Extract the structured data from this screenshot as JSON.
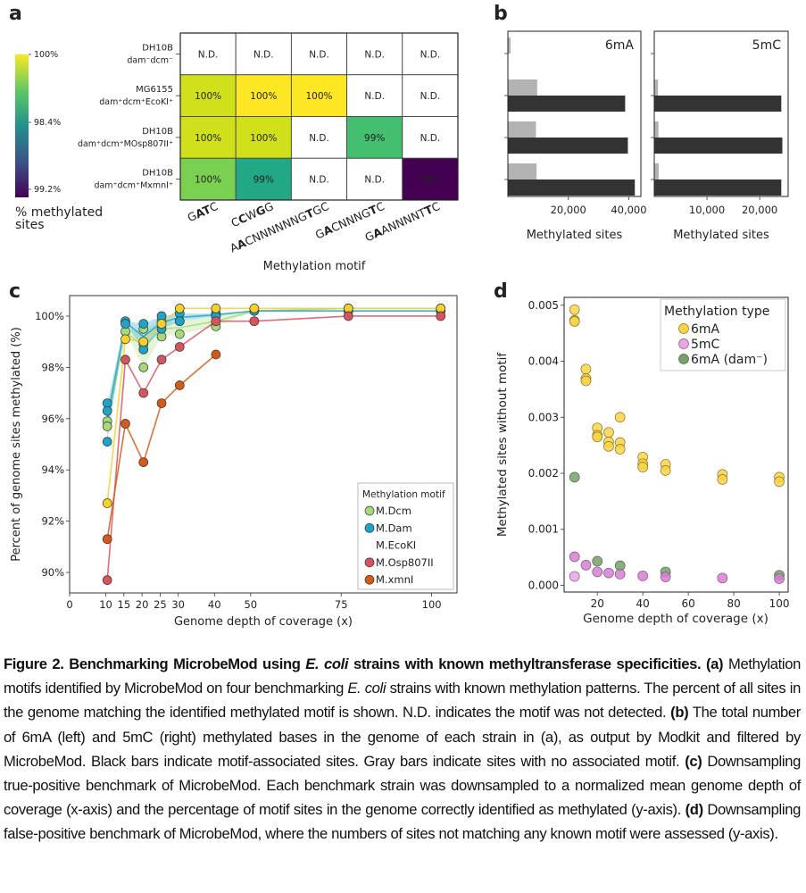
{
  "panel_labels": [
    "a",
    "b",
    "c",
    "d"
  ],
  "chart_data": [
    {
      "type": "heatmap",
      "panel": "a",
      "xlabel": "Methylation motif",
      "rows": [
        {
          "name": "DH10B",
          "genotype": "dam⁻dcm⁻"
        },
        {
          "name": "MG6155",
          "genotype": "dam⁺dcm⁺EcoKI⁺"
        },
        {
          "name": "DH10B",
          "genotype": "dam⁺dcm⁺MOsp807II⁺"
        },
        {
          "name": "DH10B",
          "genotype": "dam⁺dcm⁺MxmnI⁺"
        }
      ],
      "columns": [
        {
          "motif": "GATC",
          "bold_positions": [
            1,
            2
          ]
        },
        {
          "motif": "CCWGG",
          "bold_positions": [
            1,
            3
          ]
        },
        {
          "motif": "AACNNNNNNGTGC",
          "bold_positions": [
            1,
            10
          ]
        },
        {
          "motif": "GACNNNGTC",
          "bold_positions": [
            1,
            7
          ]
        },
        {
          "motif": "GAANNNNTTC",
          "bold_positions": [
            1,
            8
          ]
        }
      ],
      "cells": [
        [
          {
            "label": "N.D.",
            "color": "#ffffff"
          },
          {
            "label": "N.D.",
            "color": "#ffffff"
          },
          {
            "label": "N.D.",
            "color": "#ffffff"
          },
          {
            "label": "N.D.",
            "color": "#ffffff"
          },
          {
            "label": "N.D.",
            "color": "#ffffff"
          }
        ],
        [
          {
            "label": "100%",
            "color": "#d0e11c"
          },
          {
            "label": "100%",
            "color": "#fde725"
          },
          {
            "label": "100%",
            "color": "#fde725"
          },
          {
            "label": "N.D.",
            "color": "#ffffff"
          },
          {
            "label": "N.D.",
            "color": "#ffffff"
          }
        ],
        [
          {
            "label": "100%",
            "color": "#d0e11c"
          },
          {
            "label": "100%",
            "color": "#d0e11c"
          },
          {
            "label": "N.D.",
            "color": "#ffffff"
          },
          {
            "label": "99%",
            "color": "#44bf70"
          },
          {
            "label": "N.D.",
            "color": "#ffffff"
          }
        ],
        [
          {
            "label": "100%",
            "color": "#7ad151"
          },
          {
            "label": "99%",
            "color": "#22a884"
          },
          {
            "label": "N.D.",
            "color": "#ffffff"
          },
          {
            "label": "N.D.",
            "color": "#ffffff"
          },
          {
            "label": "98%",
            "color": "#440154"
          }
        ]
      ],
      "colorbar": {
        "label": "% methylated sites",
        "ticks": [
          "100%",
          "98.4%",
          "99.2%"
        ],
        "colors": [
          "#fde725",
          "#5ec962",
          "#21918c",
          "#3b528b",
          "#440154"
        ]
      }
    },
    {
      "type": "bar",
      "orientation": "horizontal",
      "panel": "b",
      "subplots": [
        {
          "title": "6mA",
          "xlabel": "Methylated sites",
          "xticks": [
            "20,000",
            "40,000"
          ],
          "xtick_values": [
            20000,
            40000
          ],
          "xlim": [
            0,
            44000
          ],
          "categories": [
            "DH10B dam⁻dcm⁻",
            "MG6155 dam⁺dcm⁺EcoKI⁺",
            "DH10B dam⁺dcm⁺MOsp807II⁺",
            "DH10B dam⁺dcm⁺MxmnI⁺"
          ],
          "series": [
            {
              "color": "#b3b3b3",
              "values": [
                900,
                9700,
                9300,
                9500
              ]
            },
            {
              "color": "#333333",
              "values": [
                0,
                38800,
                39700,
                42000
              ]
            }
          ]
        },
        {
          "title": "5mC",
          "xlabel": "Methylated sites",
          "xticks": [
            "10,000",
            "20,000"
          ],
          "xtick_values": [
            10000,
            20000
          ],
          "xlim": [
            0,
            25400
          ],
          "categories": [
            "DH10B dam⁻dcm⁻",
            "MG6155 dam⁺dcm⁺EcoKI⁺",
            "DH10B dam⁺dcm⁺MOsp807II⁺",
            "DH10B dam⁺dcm⁺MxmnI⁺"
          ],
          "series": [
            {
              "color": "#b3b3b3",
              "values": [
                0,
                700,
                800,
                850
              ]
            },
            {
              "color": "#333333",
              "values": [
                0,
                24100,
                24300,
                24100
              ]
            }
          ]
        }
      ]
    },
    {
      "type": "line",
      "panel": "c",
      "xlabel": "Genome depth of coverage (x)",
      "ylabel": "Percent of genome sites methylated (%)",
      "xlim": [
        0,
        107
      ],
      "ylim": [
        89.2,
        100.8
      ],
      "xticks": [
        0,
        10,
        15,
        20,
        25,
        30,
        40,
        50,
        75,
        100
      ],
      "yticks": [
        90,
        92,
        94,
        96,
        98,
        100
      ],
      "ytick_labels": [
        "90%",
        "92%",
        "94%",
        "96%",
        "98%",
        "100%"
      ],
      "legend": {
        "title": "Methylation motif",
        "position": "bottom-right"
      },
      "series": [
        {
          "name": "M.Dcm",
          "color": "#a6d97a",
          "band": true,
          "points": [
            [
              10.4,
              95.9
            ],
            [
              10.4,
              95.7
            ],
            [
              15.4,
              99.4
            ],
            [
              20.4,
              99.5
            ],
            [
              20.4,
              98.0
            ],
            [
              20.4,
              98.9
            ],
            [
              25.4,
              99.2
            ],
            [
              25.4,
              99.8
            ],
            [
              30.4,
              99.3
            ],
            [
              30.4,
              99.8
            ],
            [
              40.4,
              99.6
            ],
            [
              40.4,
              100.0
            ],
            [
              51,
              100.2
            ],
            [
              77,
              100.3
            ],
            [
              102.5,
              100.3
            ]
          ]
        },
        {
          "name": "M.Dam",
          "color": "#1fa3c9",
          "band": true,
          "points": [
            [
              10.4,
              96.6
            ],
            [
              10.4,
              96.3
            ],
            [
              10.4,
              95.1
            ],
            [
              15.4,
              99.8
            ],
            [
              15.4,
              99.7
            ],
            [
              20.4,
              99.7
            ],
            [
              20.4,
              98.7
            ],
            [
              25.4,
              100.0
            ],
            [
              25.4,
              99.5
            ],
            [
              30.4,
              100.1
            ],
            [
              30.4,
              99.8
            ],
            [
              40.4,
              100.1
            ],
            [
              40.4,
              100.0
            ],
            [
              51,
              100.2
            ],
            [
              77,
              100.2
            ],
            [
              102.5,
              100.2
            ]
          ]
        },
        {
          "name": "M.EcoKI",
          "color": "#f6d12c",
          "band": false,
          "legend_marker": false,
          "points": [
            [
              10.4,
              92.7
            ],
            [
              15.4,
              99.1
            ],
            [
              20.4,
              99.0
            ],
            [
              25.4,
              99.7
            ],
            [
              30.4,
              100.3
            ],
            [
              40.4,
              100.3
            ],
            [
              51,
              100.3
            ],
            [
              77,
              100.3
            ],
            [
              102.5,
              100.3
            ]
          ]
        },
        {
          "name": "M.Osp807II",
          "color": "#d9535f",
          "band": false,
          "points": [
            [
              10.4,
              89.7
            ],
            [
              15.4,
              98.3
            ],
            [
              20.4,
              97.0
            ],
            [
              25.4,
              98.3
            ],
            [
              30.4,
              98.8
            ],
            [
              40.4,
              99.8
            ],
            [
              51,
              99.8
            ],
            [
              77,
              100.0
            ],
            [
              102.5,
              100.0
            ]
          ]
        },
        {
          "name": "M.xmnI",
          "color": "#d45a18",
          "band": false,
          "points": [
            [
              10.4,
              91.3
            ],
            [
              15.4,
              95.8
            ],
            [
              20.4,
              94.3
            ],
            [
              25.4,
              96.6
            ],
            [
              30.4,
              97.3
            ],
            [
              40.4,
              98.5
            ]
          ]
        }
      ]
    },
    {
      "type": "scatter",
      "panel": "d",
      "xlabel": "Genome depth of coverage (x)",
      "ylabel": "Methylated sites without motif",
      "xlim": [
        5.4,
        103.9
      ],
      "ylim": [
        -0.00012,
        0.00514
      ],
      "xticks": [
        20,
        40,
        60,
        80,
        100
      ],
      "yticks": [
        0,
        0.001,
        0.002,
        0.003,
        0.004,
        0.005
      ],
      "ytick_labels": [
        "0.000",
        "0.001",
        "0.002",
        "0.003",
        "0.004",
        "0.005"
      ],
      "legend": {
        "title": "Methylation type",
        "position": "top-right"
      },
      "series": [
        {
          "name": "6mA",
          "color": "#f9d445",
          "points": [
            [
              10,
              0.00492
            ],
            [
              10,
              0.00473
            ],
            [
              10,
              0.00471
            ],
            [
              15,
              0.00386
            ],
            [
              15,
              0.00369
            ],
            [
              15,
              0.00365
            ],
            [
              20,
              0.00281
            ],
            [
              20,
              0.00268
            ],
            [
              20,
              0.00265
            ],
            [
              25,
              0.00273
            ],
            [
              25,
              0.00256
            ],
            [
              25,
              0.00248
            ],
            [
              30,
              0.003
            ],
            [
              30,
              0.00255
            ],
            [
              30,
              0.00243
            ],
            [
              40,
              0.00229
            ],
            [
              40,
              0.00217
            ],
            [
              40,
              0.00211
            ],
            [
              50,
              0.00216
            ],
            [
              50,
              0.00205
            ],
            [
              75,
              0.00198
            ],
            [
              75,
              0.00189
            ],
            [
              100,
              0.00193
            ],
            [
              100,
              0.00185
            ]
          ]
        },
        {
          "name": "5mC",
          "color": "#e6a8e0",
          "points": [
            [
              10,
              0.00051
            ],
            [
              10,
              0.00016
            ],
            [
              15,
              0.00036
            ],
            [
              20,
              0.00024
            ],
            [
              25,
              0.00022
            ],
            [
              30,
              0.0002
            ],
            [
              40,
              0.00017
            ],
            [
              50,
              0.00015
            ],
            [
              75,
              0.00013
            ],
            [
              100,
              0.00012
            ]
          ]
        },
        {
          "name": "6mA (dam⁻)",
          "color": "#76a068",
          "points": [
            [
              10,
              0.00193
            ],
            [
              20,
              0.00043
            ],
            [
              30,
              0.00035
            ],
            [
              50,
              0.00024
            ],
            [
              100,
              0.00018
            ]
          ]
        }
      ]
    }
  ],
  "caption": {
    "parts": [
      {
        "text": "Figure 2. Benchmarking MicrobeMod using ",
        "style": "b"
      },
      {
        "text": "E. coli",
        "style": "bi"
      },
      {
        "text": " strains with known methyltransferase specificities.",
        "style": "b"
      },
      {
        "text": " (a)",
        "style": "b"
      },
      {
        "text": " Methylation motifs identified by MicrobeMod on four benchmarking ",
        "style": "n"
      },
      {
        "text": "E. coli",
        "style": "i"
      },
      {
        "text": " strains with known methylation patterns. The percent of all sites in the genome matching the identified methylated motif is shown. N.D. indicates the motif was not detected. ",
        "style": "n"
      },
      {
        "text": "(b)",
        "style": "b"
      },
      {
        "text": " The total number of 6mA (left) and 5mC (right) methylated bases in the genome of each strain in (a), as output by Modkit and filtered by MicrobeMod. Black bars indicate motif-associated sites. Gray bars indicate sites with no associated motif. ",
        "style": "n"
      },
      {
        "text": "(c)",
        "style": "b"
      },
      {
        "text": " Downsampling true-positive benchmark of MicrobeMod. Each benchmark strain was downsampled to a normalized mean genome depth of coverage (x-axis) and the percentage of motif sites in the genome correctly identified as methylated (y-axis). ",
        "style": "n"
      },
      {
        "text": "(d)",
        "style": "b"
      },
      {
        "text": " Downsampling false-positive benchmark of MicrobeMod, where the numbers of sites not matching any known motif were assessed (y-axis).",
        "style": "n"
      }
    ]
  }
}
